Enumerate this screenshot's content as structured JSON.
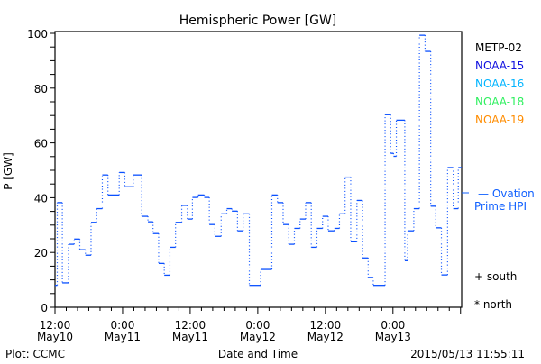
{
  "chart_data": {
    "type": "line",
    "title": "Hemispheric Power [GW]",
    "xlabel": "Date and Time",
    "ylabel": "P [GW]",
    "ylim": [
      0,
      100
    ],
    "yticks": [
      0,
      20,
      40,
      60,
      80,
      100
    ],
    "x_units": "hours since 2015-05-10 12:00",
    "xlim": [
      0,
      72.2
    ],
    "xticks": [
      {
        "t": 0,
        "time": "12:00",
        "date": "May10"
      },
      {
        "t": 12,
        "time": "0:00",
        "date": "May11"
      },
      {
        "t": 24,
        "time": "12:00",
        "date": "May11"
      },
      {
        "t": 36,
        "time": "0:00",
        "date": "May12"
      },
      {
        "t": 48,
        "time": "12:00",
        "date": "May12"
      },
      {
        "t": 60,
        "time": "0:00",
        "date": "May13"
      }
    ],
    "legend": [
      {
        "label": "METP-02",
        "color": "#000000"
      },
      {
        "label": "NOAA-15",
        "color": "#1010e0"
      },
      {
        "label": "NOAA-16",
        "color": "#00b4ff"
      },
      {
        "label": "NOAA-18",
        "color": "#30f060"
      },
      {
        "label": "NOAA-19",
        "color": "#ff8c00"
      }
    ],
    "ovation": {
      "label_1": "— Ovation",
      "label_2": "Prime HPI",
      "value": 41.8,
      "color": "#1060ff"
    },
    "markers": {
      "south": "+ south",
      "north": "* north"
    },
    "series": [
      {
        "name": "Ovation Prime HPI",
        "color": "#0a50ff",
        "end_t": 72.2,
        "steps": [
          [
            0,
            8
          ],
          [
            0.4,
            38.2
          ],
          [
            1.3,
            8.9
          ],
          [
            2.4,
            23
          ],
          [
            3.4,
            24.9
          ],
          [
            4.4,
            21
          ],
          [
            5.4,
            19
          ],
          [
            6.4,
            31
          ],
          [
            7.4,
            36
          ],
          [
            8.4,
            48.3
          ],
          [
            9.4,
            41
          ],
          [
            11.4,
            49.2
          ],
          [
            12.4,
            44
          ],
          [
            13.9,
            48.3
          ],
          [
            15.4,
            33.2
          ],
          [
            16.5,
            31.2
          ],
          [
            17.4,
            26.9
          ],
          [
            18.4,
            16
          ],
          [
            19.4,
            11.7
          ],
          [
            20.4,
            21.9
          ],
          [
            21.4,
            31
          ],
          [
            22.5,
            37.2
          ],
          [
            23.5,
            32.2
          ],
          [
            24.4,
            40.1
          ],
          [
            25.4,
            41
          ],
          [
            26.5,
            40.1
          ],
          [
            27.4,
            30.2
          ],
          [
            28.4,
            25.9
          ],
          [
            29.5,
            34.1
          ],
          [
            30.5,
            36
          ],
          [
            31.4,
            35.1
          ],
          [
            32.4,
            27.9
          ],
          [
            33.4,
            34.1
          ],
          [
            34.5,
            8
          ],
          [
            36.5,
            13.8
          ],
          [
            38.5,
            41
          ],
          [
            39.5,
            38.2
          ],
          [
            40.5,
            30.2
          ],
          [
            41.5,
            23
          ],
          [
            42.5,
            28.8
          ],
          [
            43.5,
            32.2
          ],
          [
            44.5,
            38.2
          ],
          [
            45.5,
            21.9
          ],
          [
            46.5,
            28.8
          ],
          [
            47.5,
            33.2
          ],
          [
            48.5,
            27.9
          ],
          [
            49.6,
            28.8
          ],
          [
            50.5,
            34.1
          ],
          [
            51.5,
            47.5
          ],
          [
            52.5,
            23.9
          ],
          [
            53.6,
            39
          ],
          [
            54.6,
            18
          ],
          [
            55.6,
            10.9
          ],
          [
            56.5,
            8
          ],
          [
            58.6,
            70.3
          ],
          [
            59.6,
            56.2
          ],
          [
            60.1,
            55.1
          ],
          [
            60.6,
            68.3
          ],
          [
            62.1,
            17
          ],
          [
            62.6,
            27.9
          ],
          [
            63.7,
            36
          ],
          [
            64.7,
            99.3
          ],
          [
            65.7,
            93.4
          ],
          [
            66.7,
            36.9
          ],
          [
            67.6,
            29
          ],
          [
            68.6,
            11.8
          ],
          [
            69.7,
            51
          ],
          [
            70.7,
            36
          ],
          [
            71.6,
            51
          ]
        ]
      }
    ]
  },
  "footer": {
    "left": "Plot: CCMC",
    "right": "2015/05/13 11:55:11"
  }
}
